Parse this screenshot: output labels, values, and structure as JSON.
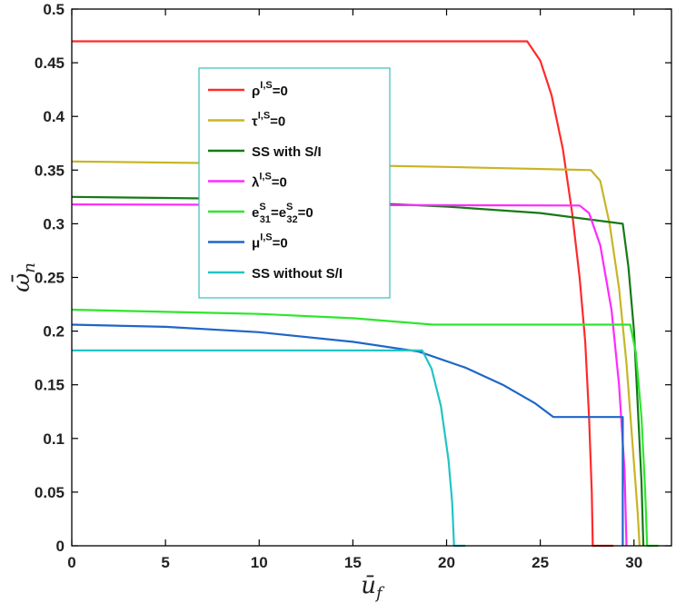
{
  "chart_data": {
    "type": "line",
    "xlabel": "ū",
    "xlabel_sub": "f",
    "ylabel": "ω̄",
    "ylabel_sub": "n",
    "xlim": [
      0,
      32
    ],
    "ylim": [
      0,
      0.5
    ],
    "xticks": [
      "0",
      "5",
      "10",
      "15",
      "20",
      "25",
      "30"
    ],
    "xtick_values": [
      0,
      5,
      10,
      15,
      20,
      25,
      30
    ],
    "yticks": [
      "0",
      "0.05",
      "0.1",
      "0.15",
      "0.2",
      "0.25",
      "0.3",
      "0.35",
      "0.4",
      "0.45",
      "0.5"
    ],
    "ytick_values": [
      0,
      0.05,
      0.1,
      0.15,
      0.2,
      0.25,
      0.3,
      0.35,
      0.4,
      0.45,
      0.5
    ],
    "grid": false,
    "legend_position": "upper-left-center",
    "series": [
      {
        "id": "rho",
        "name": "ρI,S=0",
        "legend": {
          "base": "ρ",
          "sup": "I,S",
          "rest": "=0"
        },
        "color": "#ff2a2a",
        "points": [
          [
            0,
            0.47
          ],
          [
            24.3,
            0.47
          ],
          [
            25.0,
            0.452
          ],
          [
            25.6,
            0.42
          ],
          [
            26.2,
            0.37
          ],
          [
            26.7,
            0.31
          ],
          [
            27.1,
            0.25
          ],
          [
            27.4,
            0.19
          ],
          [
            27.6,
            0.12
          ],
          [
            27.75,
            0.05
          ],
          [
            27.8,
            0.0
          ],
          [
            28.9,
            0.0
          ]
        ]
      },
      {
        "id": "tau",
        "name": "τI,S=0",
        "legend": {
          "base": "τ",
          "sup": "I,S",
          "rest": "=0"
        },
        "color": "#c8b526",
        "points": [
          [
            0,
            0.358
          ],
          [
            10,
            0.356
          ],
          [
            20,
            0.353
          ],
          [
            27.7,
            0.35
          ],
          [
            28.2,
            0.34
          ],
          [
            28.7,
            0.3
          ],
          [
            29.2,
            0.24
          ],
          [
            29.6,
            0.17
          ],
          [
            29.9,
            0.1
          ],
          [
            30.2,
            0.03
          ],
          [
            30.3,
            0.0
          ]
        ]
      },
      {
        "id": "ss-si",
        "name": "SS with S/I",
        "legend": {
          "base": "SS with S/I",
          "sup": "",
          "rest": ""
        },
        "color": "#157a15",
        "points": [
          [
            0,
            0.325
          ],
          [
            5,
            0.324
          ],
          [
            10,
            0.323
          ],
          [
            15,
            0.32
          ],
          [
            20,
            0.316
          ],
          [
            25,
            0.31
          ],
          [
            29.4,
            0.3
          ],
          [
            29.7,
            0.26
          ],
          [
            30.0,
            0.2
          ],
          [
            30.2,
            0.13
          ],
          [
            30.4,
            0.06
          ],
          [
            30.5,
            0.0
          ]
        ]
      },
      {
        "id": "lambda",
        "name": "λI,S=0",
        "legend": {
          "base": "λ",
          "sup": "I,S",
          "rest": "=0"
        },
        "color": "#ff2aff",
        "points": [
          [
            0,
            0.318
          ],
          [
            27.1,
            0.317
          ],
          [
            27.6,
            0.31
          ],
          [
            28.2,
            0.28
          ],
          [
            28.8,
            0.22
          ],
          [
            29.2,
            0.15
          ],
          [
            29.5,
            0.07
          ],
          [
            29.6,
            0.0
          ]
        ]
      },
      {
        "id": "e31",
        "name": "eS31=eS32=0",
        "legend": {
          "base": "e",
          "sup": "S",
          "rest": "=e",
          "sub": "31",
          "sup2": "S",
          "sub2": "32",
          "end": "=0"
        },
        "color": "#2ee62e",
        "points": [
          [
            0,
            0.22
          ],
          [
            10,
            0.216
          ],
          [
            15,
            0.212
          ],
          [
            19.3,
            0.206
          ],
          [
            29.8,
            0.206
          ],
          [
            30.1,
            0.18
          ],
          [
            30.4,
            0.12
          ],
          [
            30.6,
            0.05
          ],
          [
            30.7,
            0.0
          ],
          [
            31.3,
            0.0
          ]
        ]
      },
      {
        "id": "mu",
        "name": "μI,S=0",
        "legend": {
          "base": "μ",
          "sup": "I,S",
          "rest": "=0"
        },
        "color": "#1e66c8",
        "points": [
          [
            0,
            0.206
          ],
          [
            5,
            0.204
          ],
          [
            10,
            0.199
          ],
          [
            15,
            0.19
          ],
          [
            18.5,
            0.181
          ],
          [
            21,
            0.166
          ],
          [
            23,
            0.15
          ],
          [
            24.7,
            0.133
          ],
          [
            25.7,
            0.12
          ],
          [
            29.4,
            0.12
          ],
          [
            29.4,
            0.0
          ]
        ]
      },
      {
        "id": "ss-no",
        "name": "SS without S/I",
        "legend": {
          "base": "SS without S/I",
          "sup": "",
          "rest": ""
        },
        "color": "#22c4c4",
        "points": [
          [
            0,
            0.182
          ],
          [
            18.7,
            0.182
          ],
          [
            19.2,
            0.165
          ],
          [
            19.7,
            0.13
          ],
          [
            20.1,
            0.08
          ],
          [
            20.3,
            0.04
          ],
          [
            20.4,
            0.0
          ],
          [
            21.0,
            0.0
          ]
        ]
      }
    ]
  }
}
